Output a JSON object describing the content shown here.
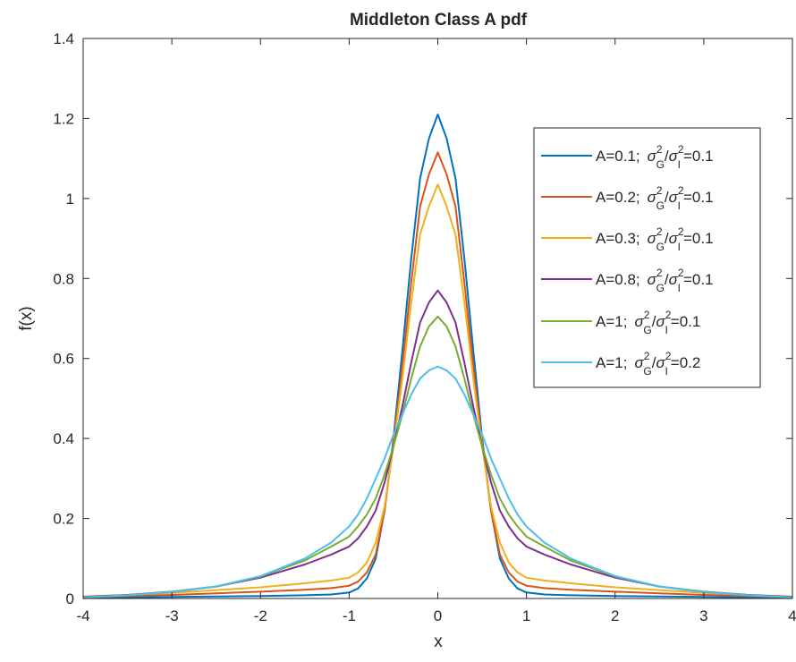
{
  "chart_data": {
    "type": "line",
    "title": "Middleton Class A pdf",
    "xlabel": "x",
    "ylabel": "f(x)",
    "xlim": [
      -4,
      4
    ],
    "ylim": [
      0,
      1.4
    ],
    "xticks": [
      "-4",
      "-3",
      "-2",
      "-1",
      "0",
      "1",
      "2",
      "3",
      "4"
    ],
    "yticks": [
      "0",
      "0.2",
      "0.4",
      "0.6",
      "0.8",
      "1",
      "1.2",
      "1.4"
    ],
    "grid": false,
    "legend_position": "top-right",
    "x": [
      -4,
      -3.5,
      -3,
      -2.5,
      -2,
      -1.5,
      -1.2,
      -1,
      -0.9,
      -0.8,
      -0.7,
      -0.6,
      -0.5,
      -0.4,
      -0.3,
      -0.2,
      -0.1,
      0,
      0.1,
      0.2,
      0.3,
      0.4,
      0.5,
      0.6,
      0.7,
      0.8,
      0.9,
      1,
      1.2,
      1.5,
      2,
      2.5,
      3,
      3.5,
      4
    ],
    "series": [
      {
        "name_prefix": "A=0.1;",
        "ratio": "0.1",
        "color": "#0072BD",
        "values": [
          0.002,
          0.003,
          0.004,
          0.005,
          0.006,
          0.008,
          0.01,
          0.015,
          0.025,
          0.05,
          0.1,
          0.22,
          0.4,
          0.62,
          0.85,
          1.05,
          1.15,
          1.21,
          1.15,
          1.05,
          0.85,
          0.62,
          0.4,
          0.22,
          0.1,
          0.05,
          0.025,
          0.015,
          0.01,
          0.008,
          0.006,
          0.005,
          0.004,
          0.003,
          0.002
        ]
      },
      {
        "name_prefix": "A=0.2;",
        "ratio": "0.1",
        "color": "#D95319",
        "values": [
          0.003,
          0.006,
          0.009,
          0.013,
          0.017,
          0.022,
          0.026,
          0.032,
          0.042,
          0.065,
          0.11,
          0.22,
          0.39,
          0.58,
          0.79,
          0.98,
          1.06,
          1.115,
          1.06,
          0.98,
          0.79,
          0.58,
          0.39,
          0.22,
          0.11,
          0.065,
          0.042,
          0.032,
          0.026,
          0.022,
          0.017,
          0.013,
          0.009,
          0.006,
          0.003
        ]
      },
      {
        "name_prefix": "A=0.3;",
        "ratio": "0.1",
        "color": "#EDB120",
        "values": [
          0.005,
          0.009,
          0.014,
          0.021,
          0.028,
          0.038,
          0.045,
          0.052,
          0.065,
          0.09,
          0.14,
          0.23,
          0.38,
          0.55,
          0.74,
          0.91,
          0.98,
          1.035,
          0.98,
          0.91,
          0.74,
          0.55,
          0.38,
          0.23,
          0.14,
          0.09,
          0.065,
          0.052,
          0.045,
          0.038,
          0.028,
          0.021,
          0.014,
          0.009,
          0.005
        ]
      },
      {
        "name_prefix": "A=0.8;",
        "ratio": "0.1",
        "color": "#7E2F8E",
        "values": [
          0.004,
          0.009,
          0.017,
          0.03,
          0.052,
          0.085,
          0.11,
          0.13,
          0.15,
          0.18,
          0.22,
          0.29,
          0.38,
          0.48,
          0.59,
          0.69,
          0.74,
          0.77,
          0.74,
          0.69,
          0.59,
          0.48,
          0.38,
          0.29,
          0.22,
          0.18,
          0.15,
          0.13,
          0.11,
          0.085,
          0.052,
          0.03,
          0.017,
          0.009,
          0.004
        ]
      },
      {
        "name_prefix": "A=1;",
        "ratio": "0.1",
        "color": "#77AC30",
        "values": [
          0.003,
          0.008,
          0.016,
          0.03,
          0.055,
          0.095,
          0.13,
          0.155,
          0.18,
          0.21,
          0.25,
          0.31,
          0.38,
          0.46,
          0.55,
          0.63,
          0.68,
          0.705,
          0.68,
          0.63,
          0.55,
          0.46,
          0.38,
          0.31,
          0.25,
          0.21,
          0.18,
          0.155,
          0.13,
          0.095,
          0.055,
          0.03,
          0.016,
          0.008,
          0.003
        ]
      },
      {
        "name_prefix": "A=1;",
        "ratio": "0.2",
        "color": "#4DBEEE",
        "values": [
          0.003,
          0.008,
          0.016,
          0.03,
          0.056,
          0.1,
          0.14,
          0.18,
          0.21,
          0.25,
          0.3,
          0.35,
          0.41,
          0.46,
          0.51,
          0.55,
          0.57,
          0.58,
          0.57,
          0.55,
          0.51,
          0.46,
          0.41,
          0.35,
          0.3,
          0.25,
          0.21,
          0.18,
          0.14,
          0.1,
          0.056,
          0.03,
          0.016,
          0.008,
          0.003
        ]
      }
    ]
  }
}
